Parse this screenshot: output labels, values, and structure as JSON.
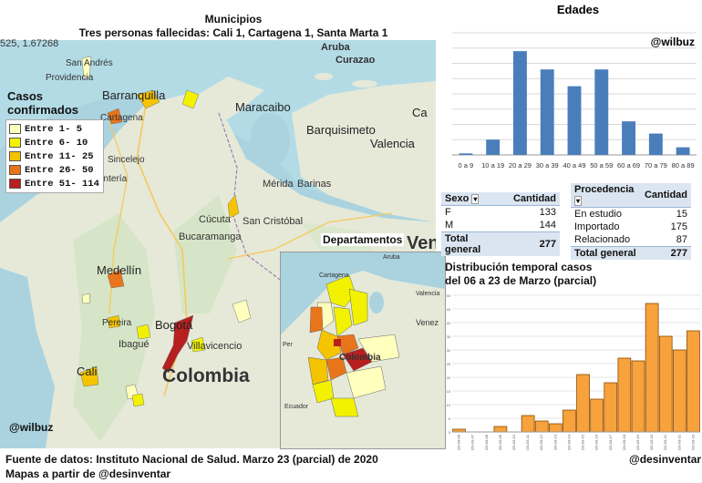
{
  "header": {
    "title": "Municipios",
    "subtitle": "Tres personas fallecidas:  Cali 1, Cartagena 1, Santa Marta 1",
    "coord": "525, 1.67268"
  },
  "legend": {
    "title_line1": "Casos",
    "title_line2": "confirmados",
    "items": [
      {
        "label": "Entre 1- 5",
        "color": "#ffffbe"
      },
      {
        "label": "Entre 6- 10",
        "color": "#f2f200"
      },
      {
        "label": "Entre 11- 25",
        "color": "#f5c400"
      },
      {
        "label": "Entre 26- 50",
        "color": "#e8751a"
      },
      {
        "label": "Entre 51- 114",
        "color": "#b81f1f"
      }
    ]
  },
  "map_labels": {
    "aruba": "Aruba",
    "curazao": "Curazao",
    "san_andres": "San Andrés",
    "providencia": "Providencia",
    "barranquilla": "Barranquilla",
    "cartagena": "Cartagena",
    "maracaibo": "Maracaibo",
    "barquisimeto": "Barquisimeto",
    "valencia": "Valencia",
    "sincelejo": "Sincelejo",
    "monteria": "ontería",
    "merida": "Mérida",
    "barinas": "Barinas",
    "cucuta": "Cúcuta",
    "san_cristobal": "San Cristóbal",
    "bucaramanga": "Bucaramanga",
    "medellin": "Medellín",
    "pereira": "Pereira",
    "ibague": "Ibagué",
    "bogota": "Bogotá",
    "villavicencio": "Villavicencio",
    "cali": "Cali",
    "colombia": "Colombia",
    "ven_partial": "Ven",
    "cara_partial": "Ca"
  },
  "inset": {
    "title": "Departamentos",
    "labels": {
      "aruba": "Aruba",
      "cartagena": "Cartagena",
      "valencia": "Valencia",
      "venezuela": "Venez",
      "colombia": "Colombia",
      "ecuador": "Ecuador",
      "peru": "Per"
    }
  },
  "credits": {
    "wilbuz_map": "@wilbuz",
    "wilbuz_chart": "@wilbuz",
    "desinventar": "@desinventar",
    "source": "Fuente de datos: Instituto Nacional de Salud. Marzo 23 (parcial) de 2020",
    "maps_from": "Mapas a partir de @desinventar"
  },
  "sexo_table": {
    "headers": [
      "Sexo",
      "Cantidad"
    ],
    "rows": [
      [
        "F",
        "133"
      ],
      [
        "M",
        "144"
      ]
    ],
    "total": [
      "Total general",
      "277"
    ]
  },
  "procedencia_table": {
    "headers": [
      "Procedencia",
      "Cantidad"
    ],
    "rows": [
      [
        "En estudio",
        "15"
      ],
      [
        "Importado",
        "175"
      ],
      [
        "Relacionado",
        "87"
      ]
    ],
    "total": [
      "Total general",
      "277"
    ]
  },
  "chart_data": [
    {
      "type": "bar",
      "title": "Edades",
      "categories": [
        "0 a 9",
        "10 a 19",
        "20 a 29",
        "30 a 39",
        "40 a 49",
        "50 a 59",
        "60 a 69",
        "70 a 79",
        "80 a 89"
      ],
      "values": [
        1,
        10,
        68,
        56,
        45,
        56,
        22,
        14,
        5
      ],
      "ylim": [
        0,
        80
      ],
      "yticks": [
        0,
        10,
        20,
        30,
        40,
        50,
        60,
        70,
        80
      ],
      "grid": true,
      "color": "#4a7ebb"
    },
    {
      "type": "bar",
      "title_line1": "Distribución temporal casos",
      "title_line2": "del 06 a 23 de Marzo (parcial)",
      "categories": [
        "2020-03-06",
        "2020-03-07",
        "2020-03-08",
        "2020-03-09",
        "2020-03-10",
        "2020-03-11",
        "2020-03-12",
        "2020-03-13",
        "2020-03-14",
        "2020-03-15",
        "2020-03-16",
        "2020-03-17",
        "2020-03-18",
        "2020-03-19",
        "2020-03-20",
        "2020-03-21",
        "2020-03-22",
        "2020-03-23"
      ],
      "values": [
        1,
        0,
        0,
        2,
        0,
        6,
        4,
        3,
        8,
        21,
        12,
        18,
        27,
        26,
        47,
        35,
        30,
        37
      ],
      "ylim": [
        0,
        50
      ],
      "yticks": [
        0,
        5,
        10,
        15,
        20,
        25,
        30,
        35,
        40,
        45,
        50
      ],
      "grid": true,
      "color": "#f7a23c"
    }
  ]
}
